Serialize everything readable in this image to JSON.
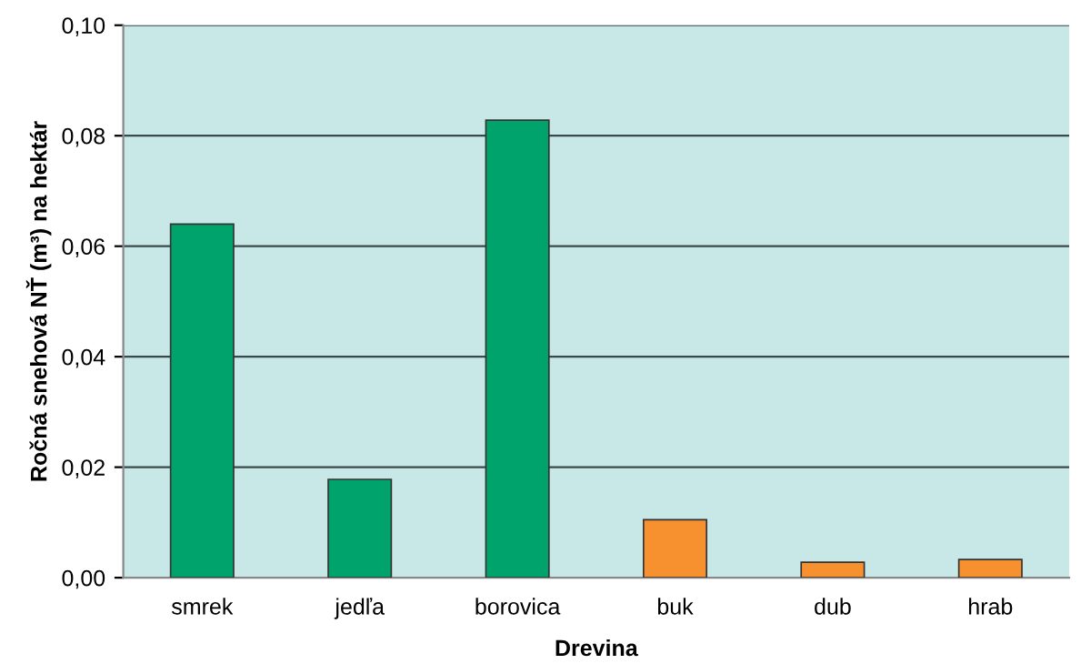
{
  "chart_data": {
    "type": "bar",
    "xlabel": "Drevina",
    "ylabel": "Ročná snehová NŤ (m³) na hektár",
    "categories": [
      "smrek",
      "jedľa",
      "borovica",
      "buk",
      "dub",
      "hrab"
    ],
    "values": [
      0.064,
      0.0178,
      0.0828,
      0.0105,
      0.0028,
      0.0033
    ],
    "colors": [
      "#00a36c",
      "#00a36c",
      "#00a36c",
      "#f7902f",
      "#f7902f",
      "#f7902f"
    ],
    "ylim": [
      0,
      0.1
    ],
    "yticks": [
      {
        "value": 0,
        "label": "0,00"
      },
      {
        "value": 0.02,
        "label": "0,02"
      },
      {
        "value": 0.04,
        "label": "0,04"
      },
      {
        "value": 0.06,
        "label": "0,06"
      },
      {
        "value": 0.08,
        "label": "0,08"
      },
      {
        "value": 0.1,
        "label": "0,10"
      }
    ],
    "grid": "y"
  }
}
